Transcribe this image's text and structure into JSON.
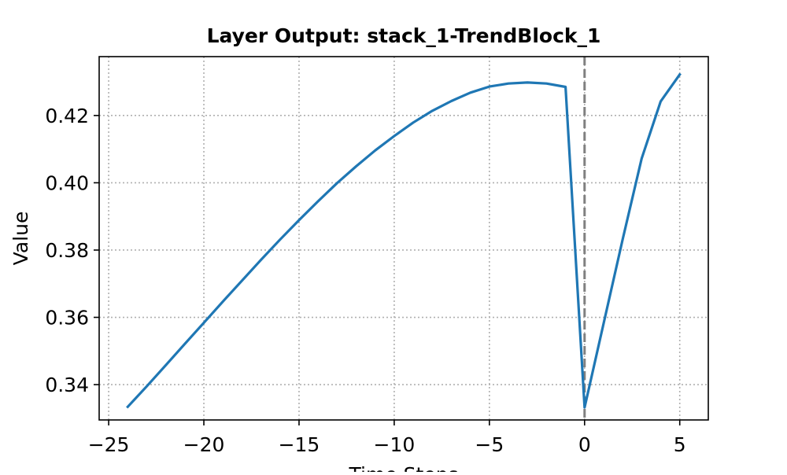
{
  "chart_data": {
    "type": "line",
    "title": "Layer Output: stack_1-TrendBlock_1",
    "xlabel": "Time Steps",
    "ylabel": "Value",
    "xlim": [
      -25.5,
      6.5
    ],
    "ylim": [
      0.3295,
      0.4375
    ],
    "xticks": [
      -25,
      -20,
      -15,
      -10,
      -5,
      0,
      5
    ],
    "xtick_labels": [
      "−25",
      "−20",
      "−15",
      "−10",
      "−5",
      "0",
      "5"
    ],
    "yticks": [
      0.34,
      0.36,
      0.38,
      0.4,
      0.42
    ],
    "ytick_labels": [
      "0.34",
      "0.36",
      "0.38",
      "0.40",
      "0.42"
    ],
    "grid": true,
    "series": [
      {
        "color": "#1f77b4",
        "x": [
          -24,
          -23,
          -22,
          -21,
          -20,
          -19,
          -18,
          -17,
          -16,
          -15,
          -14,
          -13,
          -12,
          -11,
          -10,
          -9,
          -8,
          -7,
          -6,
          -5,
          -4,
          -3,
          -2,
          -1,
          0,
          1,
          2,
          3,
          4,
          5
        ],
        "values": [
          0.3334,
          0.3395,
          0.3458,
          0.3521,
          0.3584,
          0.3647,
          0.3709,
          0.3771,
          0.3831,
          0.3889,
          0.3945,
          0.3999,
          0.4049,
          0.4096,
          0.4139,
          0.4179,
          0.4214,
          0.4243,
          0.4268,
          0.4286,
          0.4295,
          0.4298,
          0.4295,
          0.4285,
          0.3332,
          0.3582,
          0.3832,
          0.4072,
          0.4242,
          0.4322
        ]
      }
    ],
    "vline": {
      "x": 0,
      "color": "#808080",
      "style": "dashed"
    }
  }
}
